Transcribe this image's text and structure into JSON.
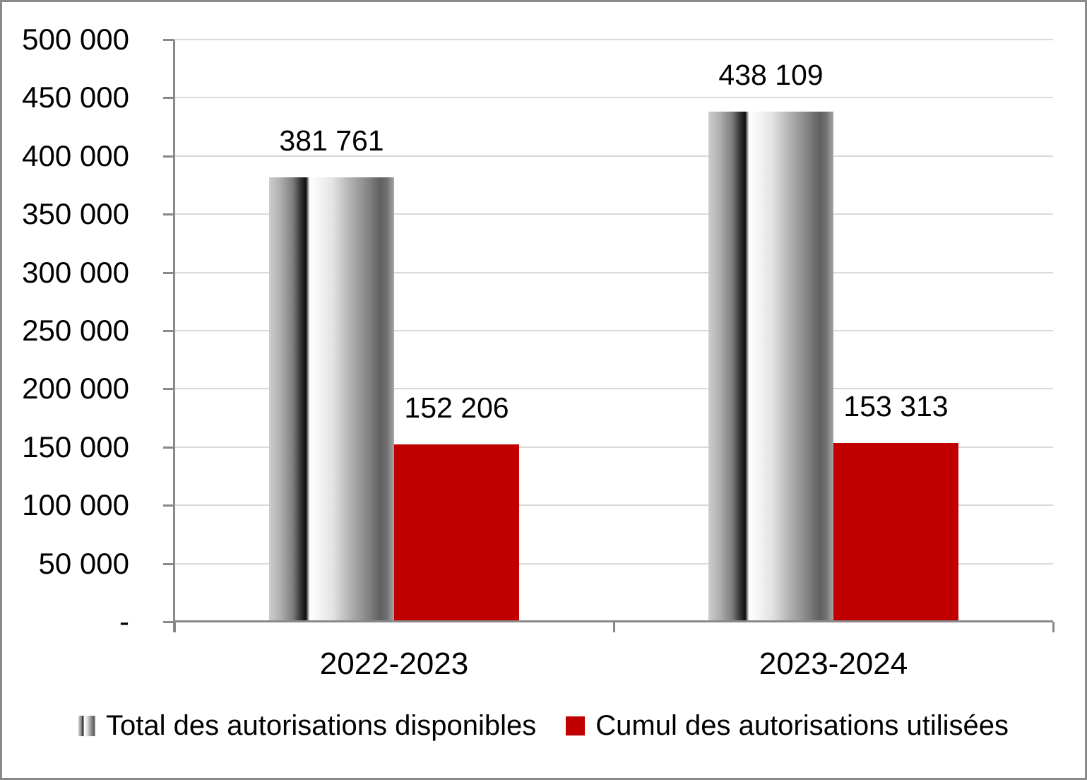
{
  "chart": {
    "background": "#FFFFFF",
    "border_color": "#8A8A8A",
    "axis_color": "#898989",
    "gridline_color": "#D9D9D9",
    "text_color": "#000000",
    "red_color": "#C00000"
  },
  "chart_data": {
    "type": "bar",
    "categories": [
      "2022-2023",
      "2023-2024"
    ],
    "series": [
      {
        "name": "Total des autorisations disponibles",
        "values": [
          381761,
          438109
        ],
        "data_labels": [
          "381 761",
          "438 109"
        ],
        "fill": "gray-gradient"
      },
      {
        "name": "Cumul des autorisations utilisées",
        "values": [
          152206,
          153313
        ],
        "data_labels": [
          "152 206",
          "153 313"
        ],
        "fill": "#C00000"
      }
    ],
    "ylim": [
      0,
      500000
    ],
    "ytick_interval": 50000,
    "yticks": [
      {
        "value": 0,
        "label": "-"
      },
      {
        "value": 50000,
        "label": "50 000"
      },
      {
        "value": 100000,
        "label": "100 000"
      },
      {
        "value": 150000,
        "label": "150 000"
      },
      {
        "value": 200000,
        "label": "200 000"
      },
      {
        "value": 250000,
        "label": "250 000"
      },
      {
        "value": 300000,
        "label": "300 000"
      },
      {
        "value": 350000,
        "label": "350 000"
      },
      {
        "value": 400000,
        "label": "400 000"
      },
      {
        "value": 450000,
        "label": "450 000"
      },
      {
        "value": 500000,
        "label": "500 000"
      }
    ],
    "grid": true,
    "legend_position": "bottom"
  }
}
